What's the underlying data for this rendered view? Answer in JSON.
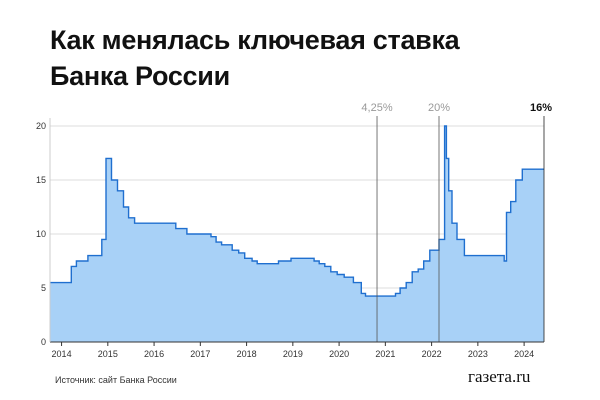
{
  "title_line1": "Как менялась ключевая ставка",
  "title_line2": "Банка России",
  "source": "Источник: сайт Банка России",
  "logo": "газета.ru",
  "chart_data": {
    "type": "area",
    "title": "Как менялась ключевая ставка Банка России",
    "xlabel": "",
    "ylabel": "",
    "xlim": [
      2013.75,
      2024.43
    ],
    "ylim": [
      0,
      20
    ],
    "yticks": [
      0,
      5,
      10,
      15,
      20
    ],
    "xticks": [
      "2014",
      "2015",
      "2016",
      "2017",
      "2018",
      "2019",
      "2020",
      "2021",
      "2022",
      "2023",
      "2024"
    ],
    "grid": "horizontal",
    "fill_color": "#a8d1f7",
    "line_color": "#1f6fcf",
    "x": [
      2013.75,
      2014.21,
      2014.32,
      2014.57,
      2014.87,
      2014.96,
      2015.08,
      2015.21,
      2015.34,
      2015.45,
      2015.58,
      2016.47,
      2016.71,
      2017.23,
      2017.34,
      2017.46,
      2017.69,
      2017.83,
      2017.96,
      2018.12,
      2018.23,
      2018.69,
      2018.96,
      2019.46,
      2019.57,
      2019.69,
      2019.82,
      2019.96,
      2020.11,
      2020.31,
      2020.48,
      2020.57,
      2021.22,
      2021.32,
      2021.45,
      2021.58,
      2021.71,
      2021.83,
      2021.96,
      2022.16,
      2022.28,
      2022.32,
      2022.37,
      2022.44,
      2022.55,
      2022.71,
      2023.57,
      2023.62,
      2023.71,
      2023.82,
      2023.96,
      2024.43
    ],
    "y": [
      5.5,
      7,
      7.5,
      8,
      9.5,
      17,
      15,
      14,
      12.5,
      11.5,
      11,
      10.5,
      10,
      9.75,
      9.25,
      9,
      8.5,
      8.25,
      7.75,
      7.5,
      7.25,
      7.5,
      7.75,
      7.5,
      7.25,
      7,
      6.5,
      6.25,
      6,
      5.5,
      4.5,
      4.25,
      4.5,
      5,
      5.5,
      6.5,
      6.75,
      7.5,
      8.5,
      9.5,
      20,
      17,
      14,
      11,
      9.5,
      8,
      7.5,
      12,
      13,
      15,
      16,
      16
    ],
    "annotations": [
      {
        "x": 2020.82,
        "label": "4,25%",
        "bold": false
      },
      {
        "x": 2022.16,
        "label": "20%",
        "bold": false
      },
      {
        "x": 2024.43,
        "label": "16%",
        "bold": true
      }
    ]
  }
}
